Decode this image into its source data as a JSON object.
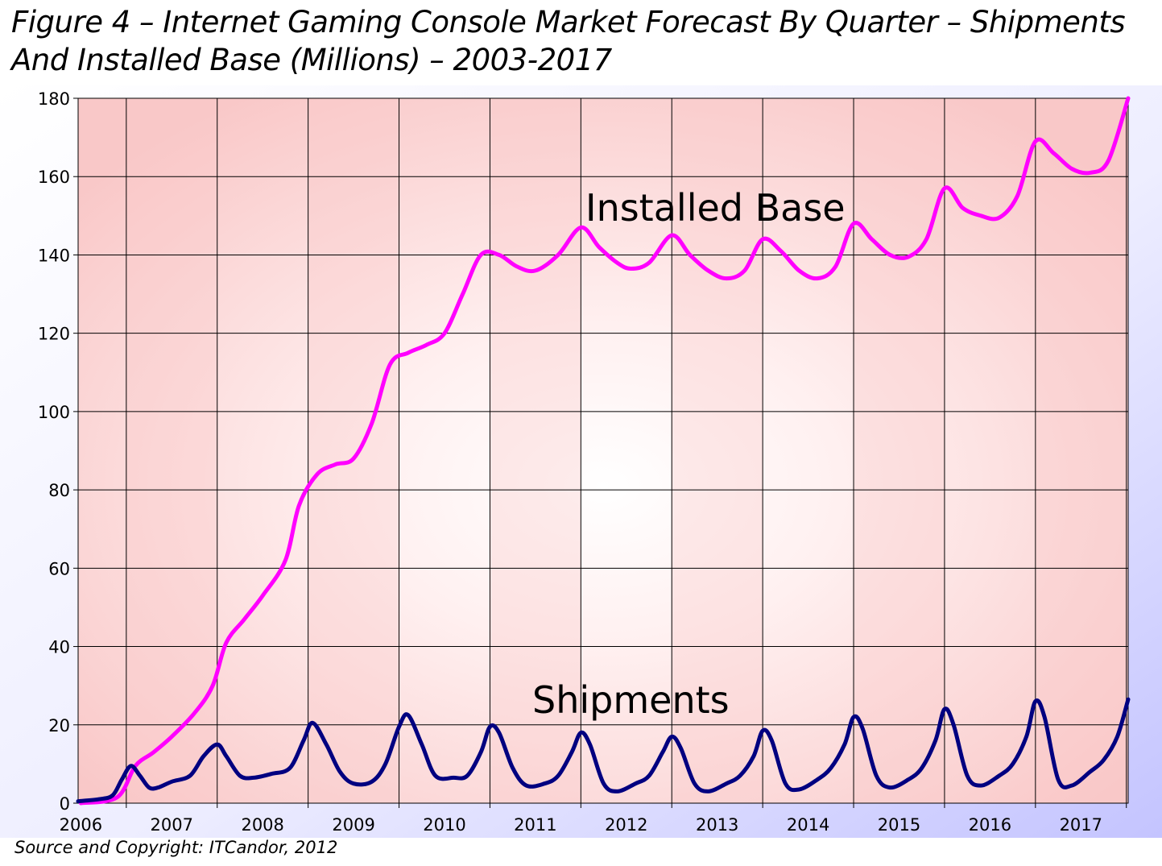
{
  "header": {
    "title_line1": "Figure 4 – Internet Gaming Console Market Forecast By Quarter – Shipments",
    "title_line2": "And Installed Base (Millions) – 2003-2017"
  },
  "footer": {
    "source": "Source and Copyright: ITCandor, 2012"
  },
  "colors": {
    "installed_base": "#ff00ff",
    "shipments": "#000080",
    "plot_band": "#f9c8c8",
    "outer_bg": "#ccccff"
  },
  "chart_data": {
    "type": "line",
    "title": "Figure 4 – Internet Gaming Console Market Forecast By Quarter – Shipments And Installed Base (Millions) – 2003-2017",
    "xlabel": "",
    "ylabel": "",
    "ylim": [
      0,
      180
    ],
    "y_ticks": [
      "0",
      "20",
      "40",
      "60",
      "80",
      "100",
      "120",
      "140",
      "160",
      "180"
    ],
    "x_labels": [
      "2006",
      "2007",
      "2008",
      "2009",
      "2010",
      "2011",
      "2012",
      "2013",
      "2014",
      "2015",
      "2016",
      "2017"
    ],
    "x_range": [
      2005.97,
      2017.52
    ],
    "grid": true,
    "legend": "none",
    "annotations": [
      "Installed Base",
      "Shipments"
    ],
    "series": [
      {
        "name": "Installed Base",
        "x": [
          2006.0,
          2006.4,
          2006.6,
          2006.8,
          2007.0,
          2007.25,
          2007.45,
          2007.6,
          2007.8,
          2008.0,
          2008.25,
          2008.4,
          2008.6,
          2008.8,
          2009.0,
          2009.2,
          2009.4,
          2009.6,
          2009.8,
          2010.0,
          2010.2,
          2010.4,
          2010.6,
          2010.8,
          2011.0,
          2011.25,
          2011.5,
          2011.7,
          2011.9,
          2012.05,
          2012.25,
          2012.5,
          2012.7,
          2012.9,
          2013.1,
          2013.3,
          2013.5,
          2013.7,
          2013.9,
          2014.1,
          2014.3,
          2014.5,
          2014.7,
          2014.9,
          2015.1,
          2015.3,
          2015.5,
          2015.7,
          2015.9,
          2016.1,
          2016.3,
          2016.5,
          2016.7,
          2016.9,
          2017.1,
          2017.3,
          2017.52
        ],
        "values": [
          0,
          1.5,
          9.5,
          13,
          17,
          23,
          30,
          41,
          47,
          53,
          62,
          76,
          84,
          86.5,
          88,
          97,
          112,
          115,
          117,
          120,
          130,
          140,
          140,
          137,
          136,
          140,
          147,
          142,
          138,
          136.5,
          138,
          145,
          140,
          136,
          134,
          136,
          144,
          141,
          136,
          134,
          137,
          148,
          144,
          140,
          139.5,
          144,
          157,
          152,
          150,
          149.5,
          155,
          169,
          166,
          162,
          161,
          164,
          180
        ]
      },
      {
        "name": "Shipments",
        "x": [
          2005.97,
          2006.2,
          2006.35,
          2006.45,
          2006.55,
          2006.65,
          2006.75,
          2006.85,
          2007.0,
          2007.2,
          2007.35,
          2007.5,
          2007.6,
          2007.75,
          2007.9,
          2008.1,
          2008.3,
          2008.45,
          2008.55,
          2008.7,
          2008.85,
          2009.0,
          2009.2,
          2009.35,
          2009.5,
          2009.6,
          2009.75,
          2009.9,
          2010.1,
          2010.25,
          2010.4,
          2010.5,
          2010.6,
          2010.75,
          2010.9,
          2011.1,
          2011.25,
          2011.4,
          2011.5,
          2011.6,
          2011.75,
          2011.9,
          2012.1,
          2012.25,
          2012.4,
          2012.5,
          2012.6,
          2012.75,
          2012.9,
          2013.1,
          2013.25,
          2013.4,
          2013.5,
          2013.6,
          2013.75,
          2013.9,
          2014.1,
          2014.25,
          2014.4,
          2014.5,
          2014.6,
          2014.75,
          2014.9,
          2015.1,
          2015.25,
          2015.4,
          2015.5,
          2015.6,
          2015.75,
          2015.9,
          2016.1,
          2016.25,
          2016.4,
          2016.5,
          2016.6,
          2016.75,
          2016.9,
          2017.1,
          2017.25,
          2017.4,
          2017.52
        ],
        "values": [
          0.5,
          1,
          2,
          6,
          9.5,
          7,
          4,
          4,
          5.5,
          7,
          12,
          15,
          12,
          7,
          6.5,
          7.5,
          9,
          16,
          20.5,
          15,
          8,
          5,
          5.5,
          10,
          19.5,
          22.5,
          15,
          7,
          6.5,
          7,
          13,
          19.5,
          18,
          9,
          4.5,
          5,
          7,
          13,
          18,
          15,
          5,
          3,
          5,
          7,
          13,
          17,
          14,
          5,
          3,
          5,
          7,
          12,
          18.5,
          16,
          5,
          3.5,
          6,
          9,
          15,
          22,
          19,
          7,
          4,
          6,
          9,
          16,
          24,
          20,
          7,
          4.5,
          7,
          10,
          17,
          26,
          22,
          6,
          4.5,
          8,
          11,
          17,
          26.5
        ]
      }
    ]
  }
}
